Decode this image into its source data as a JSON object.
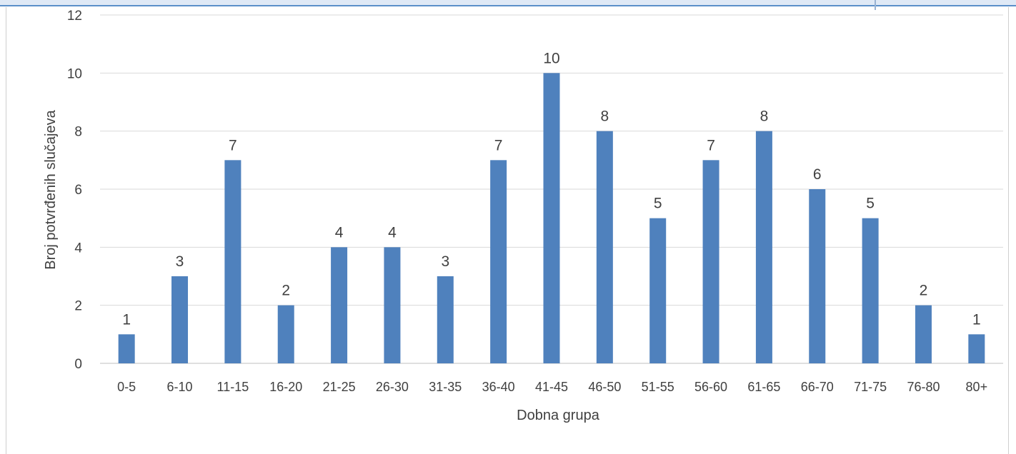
{
  "chart_data": {
    "type": "bar",
    "title": "",
    "xlabel": "Dobna grupa",
    "ylabel": "Broj potvrđenih slučajeva",
    "categories": [
      "0-5",
      "6-10",
      "11-15",
      "16-20",
      "21-25",
      "26-30",
      "31-35",
      "36-40",
      "41-45",
      "46-50",
      "51-55",
      "56-60",
      "61-65",
      "66-70",
      "71-75",
      "76-80",
      "80+"
    ],
    "values": [
      1,
      3,
      7,
      2,
      4,
      4,
      3,
      7,
      10,
      8,
      5,
      7,
      8,
      6,
      5,
      2,
      1
    ],
    "ylim": [
      0,
      12
    ],
    "yticks": [
      0,
      2,
      4,
      6,
      8,
      10,
      12
    ],
    "grid": true,
    "legend": "none",
    "bar_color": "#4f81bd"
  }
}
